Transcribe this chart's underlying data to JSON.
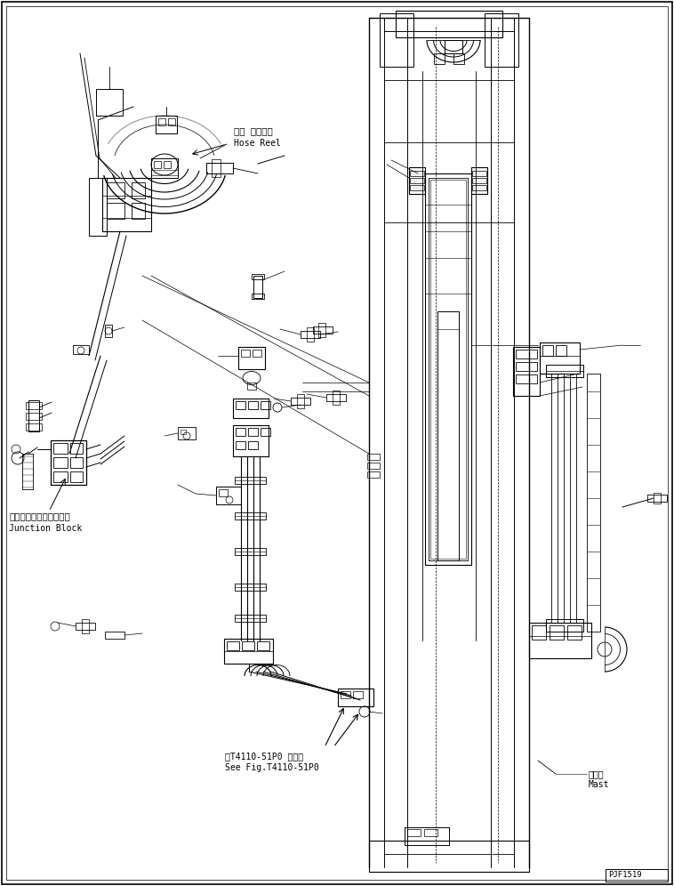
{
  "bg_color": "#ffffff",
  "line_color": "#000000",
  "fig_width": 7.58,
  "fig_height": 9.96,
  "dpi": 100,
  "labels": {
    "hose_reel_jp": "ホー スリール",
    "hose_reel_en": "Hose Reel",
    "junction_jp": "ジャンクションブロック",
    "junction_en": "Junction Block",
    "mast_jp": "マスト",
    "mast_en": "Mast",
    "see_fig_jp": "第T4110-51P0 図参照",
    "see_fig_en": "See Fig.T4110-51P0",
    "part_num": "PJF1519"
  }
}
